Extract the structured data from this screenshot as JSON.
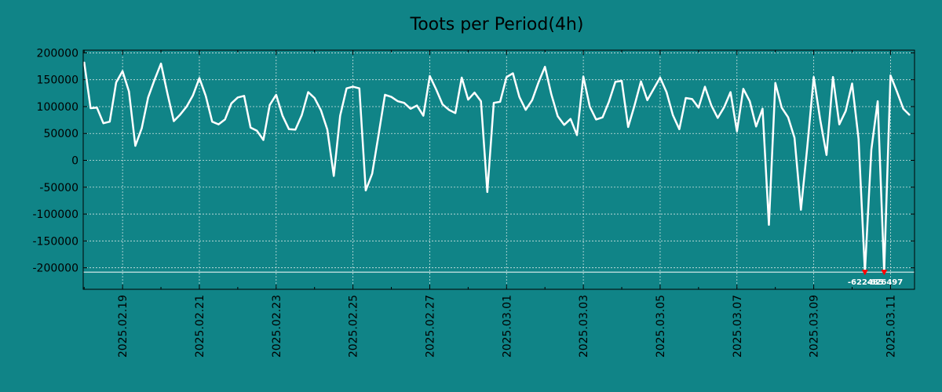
{
  "chart_data": {
    "type": "line",
    "title": "Toots per Period(4h)",
    "xlabel": "",
    "ylabel": "",
    "x_start": "2025.02.18 00:00",
    "x_step_hours": 4,
    "xlim_days": [
      -0.025,
      21.625
    ],
    "ylim": [
      -240000,
      205000
    ],
    "y_ticks": [
      200000,
      150000,
      100000,
      50000,
      0,
      -50000,
      -100000,
      -150000,
      -200000
    ],
    "x_tick_labels": [
      "2025.02.19",
      "2025.02.21",
      "2025.02.23",
      "2025.02.25",
      "2025.02.27",
      "2025.03.01",
      "2025.03.03",
      "2025.03.05",
      "2025.03.07",
      "2025.03.09",
      "2025.03.11"
    ],
    "x_tick_days": [
      1,
      3,
      5,
      7,
      9,
      11,
      13,
      15,
      17,
      19,
      21
    ],
    "grid": true,
    "series": [
      {
        "name": "toots",
        "color": "#ffffff",
        "values": [
          183000,
          97000,
          98000,
          69000,
          72000,
          145000,
          166000,
          128000,
          27000,
          60000,
          117000,
          150000,
          180000,
          125000,
          73000,
          85000,
          100000,
          121000,
          153000,
          120000,
          72000,
          67000,
          76000,
          106000,
          117000,
          120000,
          61000,
          55000,
          38000,
          103000,
          122000,
          83000,
          58000,
          57000,
          84000,
          127000,
          116000,
          93000,
          57000,
          -29000,
          83000,
          134000,
          137000,
          134000,
          -56000,
          -25000,
          47000,
          122000,
          118000,
          110000,
          107000,
          96000,
          102000,
          83000,
          157000,
          132000,
          104000,
          94000,
          88000,
          154000,
          113000,
          126000,
          110000,
          -59000,
          107000,
          109000,
          155000,
          162000,
          118000,
          94000,
          112000,
          145000,
          174000,
          123000,
          82000,
          66000,
          77000,
          47000,
          156000,
          100000,
          76000,
          80000,
          109000,
          146000,
          148000,
          62000,
          102000,
          147000,
          112000,
          133000,
          154000,
          127000,
          84000,
          58000,
          116000,
          114000,
          98000,
          137000,
          102000,
          79000,
          99000,
          127000,
          54000,
          133000,
          110000,
          63000,
          96000,
          -120000,
          144000,
          98000,
          80000,
          42000,
          -92000,
          25000,
          155000,
          76000,
          10000,
          155000,
          67000,
          92000,
          143000,
          40000,
          -208000,
          20000,
          110000,
          -208000,
          158000,
          128000,
          96000,
          84000
        ]
      }
    ],
    "threshold_value": -208000,
    "annotations": [
      {
        "x_index": 122,
        "value": -208000,
        "label": "-622485"
      },
      {
        "x_index": 125,
        "value": -208000,
        "label": "-626497"
      }
    ],
    "colors": {
      "background": "#108487",
      "plot_background": "#108487",
      "line": "#ffffff",
      "grid": "#cfe3e3",
      "marker": "#ff0000",
      "text": "#000000",
      "annotation_text": "#ffffff"
    }
  }
}
